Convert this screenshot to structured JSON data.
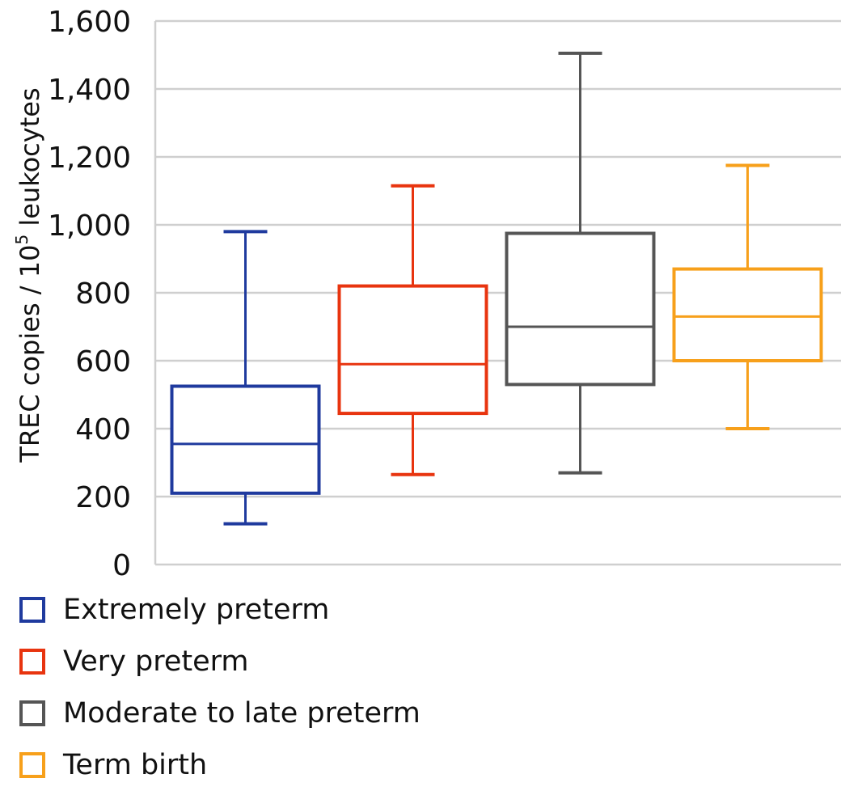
{
  "chart_data": {
    "type": "box",
    "ylabel_main": "TREC copies / 10",
    "ylabel_sup": "5",
    "ylabel_tail": " leukocytes",
    "ylim": [
      0,
      1600
    ],
    "yticks": [
      0,
      200,
      400,
      600,
      800,
      1000,
      1200,
      1400,
      1600
    ],
    "ytick_labels": [
      "0",
      "200",
      "400",
      "600",
      "800",
      "1,000",
      "1,200",
      "1,400",
      "1,600"
    ],
    "grid": true,
    "legend_placement": "bottom-left",
    "series": [
      {
        "name": "Extremely preterm",
        "color": "#1f3a9e",
        "min": 120,
        "q1": 210,
        "median": 355,
        "q3": 525,
        "max": 980
      },
      {
        "name": "Very preterm",
        "color": "#e8340f",
        "min": 265,
        "q1": 445,
        "median": 590,
        "q3": 820,
        "max": 1115
      },
      {
        "name": "Moderate to late preterm",
        "color": "#555555",
        "min": 270,
        "q1": 530,
        "median": 700,
        "q3": 975,
        "max": 1505
      },
      {
        "name": "Term birth",
        "color": "#f7a01b",
        "min": 400,
        "q1": 600,
        "median": 730,
        "q3": 870,
        "max": 1175
      }
    ]
  }
}
